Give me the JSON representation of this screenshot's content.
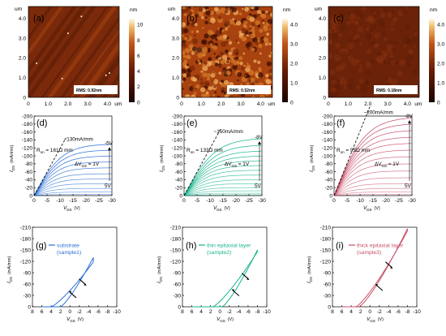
{
  "afm": {
    "panels": [
      {
        "label": "(a)",
        "rms": "RMS: 0.92nm",
        "nm_ticks": [
          "10",
          "8",
          "6",
          "4",
          "2",
          "0"
        ],
        "nm_max": 10,
        "palette": "copper",
        "texture": "streaks"
      },
      {
        "label": "(b)",
        "rms": "RMS: 0.52nm",
        "nm_ticks": [
          "4.0",
          "3.0",
          "2.0",
          "1.0",
          "0"
        ],
        "nm_max": 4,
        "palette": "bright",
        "texture": "grainy"
      },
      {
        "label": "(c)",
        "rms": "RMS: 0.18nm",
        "nm_ticks": [
          "4.0",
          "3.0",
          "2.0",
          "1.0",
          "0"
        ],
        "nm_max": 4,
        "palette": "dark",
        "texture": "smooth"
      }
    ],
    "y_ticks": [
      "4.0",
      "3.0",
      "2.0",
      "1.0",
      "0"
    ],
    "x_ticks": [
      "0",
      "1.0",
      "2.0",
      "3.0",
      "4.0"
    ],
    "unit": "um",
    "cbar_unit": "nm",
    "nm_zero": "0"
  },
  "output": {
    "x_ticks": [
      "0",
      "-5",
      "-10",
      "-15",
      "-20",
      "-25",
      "-30"
    ],
    "y_ticks": [
      "0",
      "-20",
      "-40",
      "-60",
      "-80",
      "-100",
      "-120",
      "-140",
      "-160",
      "-180",
      "-200"
    ],
    "ylabel_main": "I",
    "ylabel_sub": "DS",
    "ylabel_unit": "(mA/mm)",
    "xlabel_main": "V",
    "xlabel_sub": "DS",
    "xlabel_unit": "(V)",
    "step_main": "ΔV",
    "step_sub": "GS",
    "step_val": " = 1V",
    "ron_main": "R",
    "ron_sub": "on"
  },
  "chart_data": [
    {
      "panel": "(d)",
      "type": "line",
      "title": "",
      "xlabel": "VDS (V)",
      "ylabel": "IDS (mA/mm)",
      "xlim": [
        0,
        -30
      ],
      "ylim": [
        0,
        -200
      ],
      "color": "#2a6fd6",
      "ron": " = 161Ω mm",
      "ron_value": 161,
      "imax_label": "~130mA/mm",
      "imax": -130,
      "top_vgs": "-5V",
      "bottom_vgs": "5V",
      "curves": [
        {
          "vgs": 5,
          "isat": -3
        },
        {
          "vgs": 4,
          "isat": -9
        },
        {
          "vgs": 3,
          "isat": -18
        },
        {
          "vgs": 2,
          "isat": -30
        },
        {
          "vgs": 1,
          "isat": -42
        },
        {
          "vgs": 0,
          "isat": -55
        },
        {
          "vgs": -1,
          "isat": -70
        },
        {
          "vgs": -2,
          "isat": -85
        },
        {
          "vgs": -3,
          "isat": -100
        },
        {
          "vgs": -4,
          "isat": -115
        },
        {
          "vgs": -5,
          "isat": -130
        }
      ]
    },
    {
      "panel": "(e)",
      "type": "line",
      "title": "",
      "xlabel": "VDS (V)",
      "ylabel": "IDS (mA/mm)",
      "xlim": [
        0,
        -30
      ],
      "ylim": [
        0,
        -200
      ],
      "color": "#18b58c",
      "ron": " = 133Ω mm",
      "ron_value": 133,
      "imax_label": "~150mA/mm",
      "imax": -150,
      "top_vgs": "-8V",
      "bottom_vgs": "5V",
      "curves": [
        {
          "vgs": 5,
          "isat": -2
        },
        {
          "vgs": 4,
          "isat": -6
        },
        {
          "vgs": 3,
          "isat": -12
        },
        {
          "vgs": 2,
          "isat": -20
        },
        {
          "vgs": 1,
          "isat": -30
        },
        {
          "vgs": 0,
          "isat": -40
        },
        {
          "vgs": -1,
          "isat": -52
        },
        {
          "vgs": -2,
          "isat": -64
        },
        {
          "vgs": -3,
          "isat": -76
        },
        {
          "vgs": -4,
          "isat": -88
        },
        {
          "vgs": -5,
          "isat": -100
        },
        {
          "vgs": -6,
          "isat": -113
        },
        {
          "vgs": -7,
          "isat": -128
        },
        {
          "vgs": -8,
          "isat": -145
        }
      ]
    },
    {
      "panel": "(f)",
      "type": "line",
      "title": "",
      "xlabel": "VDS (V)",
      "ylabel": "IDS (mA/mm)",
      "xlim": [
        0,
        -30
      ],
      "ylim": [
        0,
        -200
      ],
      "color": "#c8506a",
      "ron": " = 95Ω mm",
      "ron_value": 95,
      "imax_label": "~200mA/mm",
      "imax": -200,
      "top_vgs": "-8V",
      "bottom_vgs": "5V",
      "curves": [
        {
          "vgs": 5,
          "isat": -3
        },
        {
          "vgs": 4,
          "isat": -9
        },
        {
          "vgs": 3,
          "isat": -18
        },
        {
          "vgs": 2,
          "isat": -30
        },
        {
          "vgs": 1,
          "isat": -45
        },
        {
          "vgs": 0,
          "isat": -62
        },
        {
          "vgs": -1,
          "isat": -80
        },
        {
          "vgs": -2,
          "isat": -98
        },
        {
          "vgs": -3,
          "isat": -115
        },
        {
          "vgs": -4,
          "isat": -132
        },
        {
          "vgs": -5,
          "isat": -148
        },
        {
          "vgs": -6,
          "isat": -165
        },
        {
          "vgs": -7,
          "isat": -182
        },
        {
          "vgs": -8,
          "isat": -198
        }
      ]
    },
    {
      "panel": "(g)",
      "type": "line",
      "title": "",
      "xlabel": "VGS (V)",
      "ylabel": "IDS (mA/mm)",
      "xlim": [
        8,
        -10
      ],
      "ylim": [
        0,
        -210
      ],
      "color": "#2a6fd6",
      "legend": "substrate",
      "legend2": "(sample1)",
      "vgs_end": -5,
      "forward_end": -118,
      "reverse_end": -130,
      "vth_fwd": 4,
      "vth_rev": 2
    },
    {
      "panel": "(h)",
      "type": "line",
      "title": "",
      "xlabel": "VGS (V)",
      "ylabel": "IDS (mA/mm)",
      "xlim": [
        8,
        -10
      ],
      "ylim": [
        0,
        -210
      ],
      "color": "#18b58c",
      "legend": "thin epitaxial layer",
      "legend2": "(sample2)",
      "vgs_end": -8,
      "forward_end": -145,
      "reverse_end": -150,
      "vth_fwd": 1.5,
      "vth_rev": -0.5
    },
    {
      "panel": "(i)",
      "type": "line",
      "title": "",
      "xlabel": "VGS (V)",
      "ylabel": "IDS (mA/mm)",
      "xlim": [
        8,
        -10
      ],
      "ylim": [
        0,
        -210
      ],
      "color": "#c8506a",
      "legend": "thick epitaxial layer",
      "legend2": "(sample3)",
      "vgs_end": -8,
      "forward_end": -200,
      "reverse_end": -206,
      "vth_fwd": 3,
      "vth_rev": 2.3
    }
  ],
  "transfer": {
    "x_ticks": [
      "8",
      "6",
      "4",
      "2",
      "0",
      "-2",
      "-4",
      "-6",
      "-8",
      "-10"
    ],
    "y_ticks": [
      "0",
      "-30",
      "-60",
      "-90",
      "-120",
      "-150",
      "-180",
      "-210"
    ],
    "ylabel_main": "I",
    "ylabel_sub": "DS",
    "ylabel_unit": "(mA/mm)",
    "xlabel_main": "V",
    "xlabel_sub": "GS",
    "xlabel_unit": "(V)"
  }
}
